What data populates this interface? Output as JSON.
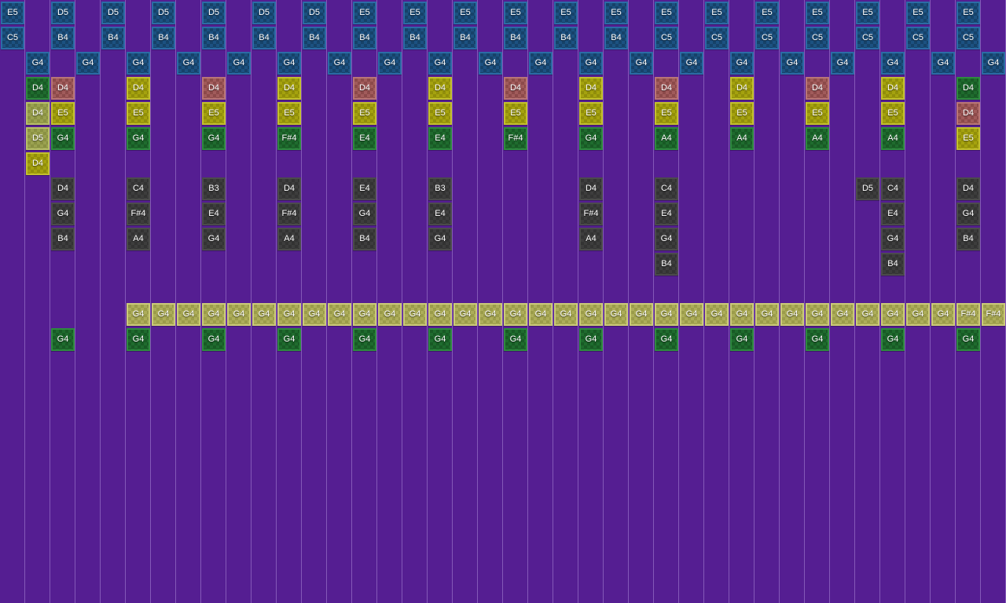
{
  "app": {
    "name": "music-sequencer-grid",
    "background_color": "#551e92",
    "gridline_color": "rgba(190,160,230,0.45)"
  },
  "note_colors": {
    "blue": {
      "fill1": "#1c5181",
      "fill2": "#164269",
      "border": "#2b6ba5"
    },
    "green": {
      "fill1": "#1f6b2e",
      "fill2": "#185a25",
      "border": "#2e8a3f"
    },
    "red": {
      "fill1": "#a15b5b",
      "fill2": "#8c4a4a",
      "border": "#b97676"
    },
    "yellow": {
      "fill1": "#a5a20e",
      "fill2": "#918e0a",
      "border": "#c3c02e"
    },
    "olive": {
      "fill1": "#9aa14f",
      "fill2": "#8a9143",
      "border": "#b8bf69"
    },
    "khaki": {
      "fill1": "#adad5a",
      "fill2": "#9b9c4a",
      "border": "#cbca79"
    },
    "gray": {
      "fill1": "#3d3d3d",
      "fill2": "#333333",
      "border": "#4b4b4b"
    }
  },
  "notes": {
    "format": [
      "column",
      "row",
      "pitch",
      "color"
    ],
    "items": [
      [
        0,
        0,
        "E5",
        "blue"
      ],
      [
        2,
        0,
        "D5",
        "blue"
      ],
      [
        4,
        0,
        "D5",
        "blue"
      ],
      [
        6,
        0,
        "D5",
        "blue"
      ],
      [
        8,
        0,
        "D5",
        "blue"
      ],
      [
        10,
        0,
        "D5",
        "blue"
      ],
      [
        12,
        0,
        "D5",
        "blue"
      ],
      [
        14,
        0,
        "E5",
        "blue"
      ],
      [
        16,
        0,
        "E5",
        "blue"
      ],
      [
        18,
        0,
        "E5",
        "blue"
      ],
      [
        20,
        0,
        "E5",
        "blue"
      ],
      [
        22,
        0,
        "E5",
        "blue"
      ],
      [
        24,
        0,
        "E5",
        "blue"
      ],
      [
        26,
        0,
        "E5",
        "blue"
      ],
      [
        28,
        0,
        "E5",
        "blue"
      ],
      [
        30,
        0,
        "E5",
        "blue"
      ],
      [
        32,
        0,
        "E5",
        "blue"
      ],
      [
        34,
        0,
        "E5",
        "blue"
      ],
      [
        36,
        0,
        "E5",
        "blue"
      ],
      [
        38,
        0,
        "E5",
        "blue"
      ],
      [
        0,
        1,
        "C5",
        "blue"
      ],
      [
        2,
        1,
        "B4",
        "blue"
      ],
      [
        4,
        1,
        "B4",
        "blue"
      ],
      [
        6,
        1,
        "B4",
        "blue"
      ],
      [
        8,
        1,
        "B4",
        "blue"
      ],
      [
        10,
        1,
        "B4",
        "blue"
      ],
      [
        12,
        1,
        "B4",
        "blue"
      ],
      [
        14,
        1,
        "B4",
        "blue"
      ],
      [
        16,
        1,
        "B4",
        "blue"
      ],
      [
        18,
        1,
        "B4",
        "blue"
      ],
      [
        20,
        1,
        "B4",
        "blue"
      ],
      [
        22,
        1,
        "B4",
        "blue"
      ],
      [
        24,
        1,
        "B4",
        "blue"
      ],
      [
        26,
        1,
        "C5",
        "blue"
      ],
      [
        28,
        1,
        "C5",
        "blue"
      ],
      [
        30,
        1,
        "C5",
        "blue"
      ],
      [
        32,
        1,
        "C5",
        "blue"
      ],
      [
        34,
        1,
        "C5",
        "blue"
      ],
      [
        36,
        1,
        "C5",
        "blue"
      ],
      [
        38,
        1,
        "C5",
        "blue"
      ],
      [
        1,
        2,
        "G4",
        "blue"
      ],
      [
        3,
        2,
        "G4",
        "blue"
      ],
      [
        5,
        2,
        "G4",
        "blue"
      ],
      [
        7,
        2,
        "G4",
        "blue"
      ],
      [
        9,
        2,
        "G4",
        "blue"
      ],
      [
        11,
        2,
        "G4",
        "blue"
      ],
      [
        13,
        2,
        "G4",
        "blue"
      ],
      [
        15,
        2,
        "G4",
        "blue"
      ],
      [
        17,
        2,
        "G4",
        "blue"
      ],
      [
        19,
        2,
        "G4",
        "blue"
      ],
      [
        21,
        2,
        "G4",
        "blue"
      ],
      [
        23,
        2,
        "G4",
        "blue"
      ],
      [
        25,
        2,
        "G4",
        "blue"
      ],
      [
        27,
        2,
        "G4",
        "blue"
      ],
      [
        29,
        2,
        "G4",
        "blue"
      ],
      [
        31,
        2,
        "G4",
        "blue"
      ],
      [
        33,
        2,
        "G4",
        "blue"
      ],
      [
        35,
        2,
        "G4",
        "blue"
      ],
      [
        37,
        2,
        "G4",
        "blue"
      ],
      [
        39,
        2,
        "G4",
        "blue"
      ],
      [
        1,
        3,
        "D4",
        "green"
      ],
      [
        2,
        3,
        "D4",
        "red"
      ],
      [
        5,
        3,
        "D4",
        "yellow"
      ],
      [
        8,
        3,
        "D4",
        "red"
      ],
      [
        11,
        3,
        "D4",
        "yellow"
      ],
      [
        14,
        3,
        "D4",
        "red"
      ],
      [
        17,
        3,
        "D4",
        "yellow"
      ],
      [
        20,
        3,
        "D4",
        "red"
      ],
      [
        23,
        3,
        "D4",
        "yellow"
      ],
      [
        26,
        3,
        "D4",
        "red"
      ],
      [
        29,
        3,
        "D4",
        "yellow"
      ],
      [
        32,
        3,
        "D4",
        "red"
      ],
      [
        35,
        3,
        "D4",
        "yellow"
      ],
      [
        38,
        3,
        "D4",
        "green"
      ],
      [
        1,
        4,
        "D4",
        "olive"
      ],
      [
        2,
        4,
        "E5",
        "yellow"
      ],
      [
        5,
        4,
        "E5",
        "yellow"
      ],
      [
        8,
        4,
        "E5",
        "yellow"
      ],
      [
        11,
        4,
        "E5",
        "yellow"
      ],
      [
        14,
        4,
        "E5",
        "yellow"
      ],
      [
        17,
        4,
        "E5",
        "yellow"
      ],
      [
        20,
        4,
        "E5",
        "yellow"
      ],
      [
        23,
        4,
        "E5",
        "yellow"
      ],
      [
        26,
        4,
        "E5",
        "yellow"
      ],
      [
        29,
        4,
        "E5",
        "yellow"
      ],
      [
        32,
        4,
        "E5",
        "yellow"
      ],
      [
        35,
        4,
        "E5",
        "yellow"
      ],
      [
        38,
        4,
        "D4",
        "red"
      ],
      [
        1,
        5,
        "D5",
        "olive"
      ],
      [
        2,
        5,
        "G4",
        "green"
      ],
      [
        5,
        5,
        "G4",
        "green"
      ],
      [
        8,
        5,
        "G4",
        "green"
      ],
      [
        11,
        5,
        "F#4",
        "green"
      ],
      [
        14,
        5,
        "E4",
        "green"
      ],
      [
        17,
        5,
        "E4",
        "green"
      ],
      [
        20,
        5,
        "F#4",
        "green"
      ],
      [
        23,
        5,
        "G4",
        "green"
      ],
      [
        26,
        5,
        "A4",
        "green"
      ],
      [
        29,
        5,
        "A4",
        "green"
      ],
      [
        32,
        5,
        "A4",
        "green"
      ],
      [
        35,
        5,
        "A4",
        "green"
      ],
      [
        38,
        5,
        "E5",
        "yellow"
      ],
      [
        1,
        6,
        "D4",
        "yellow"
      ],
      [
        2,
        7,
        "D4",
        "gray"
      ],
      [
        5,
        7,
        "C4",
        "gray"
      ],
      [
        8,
        7,
        "B3",
        "gray"
      ],
      [
        11,
        7,
        "D4",
        "gray"
      ],
      [
        14,
        7,
        "E4",
        "gray"
      ],
      [
        17,
        7,
        "B3",
        "gray"
      ],
      [
        23,
        7,
        "D4",
        "gray"
      ],
      [
        26,
        7,
        "C4",
        "gray"
      ],
      [
        34,
        7,
        "D5",
        "gray"
      ],
      [
        35,
        7,
        "C4",
        "gray"
      ],
      [
        38,
        7,
        "D4",
        "gray"
      ],
      [
        2,
        8,
        "G4",
        "gray"
      ],
      [
        5,
        8,
        "F#4",
        "gray"
      ],
      [
        8,
        8,
        "E4",
        "gray"
      ],
      [
        11,
        8,
        "F#4",
        "gray"
      ],
      [
        14,
        8,
        "G4",
        "gray"
      ],
      [
        17,
        8,
        "E4",
        "gray"
      ],
      [
        23,
        8,
        "F#4",
        "gray"
      ],
      [
        26,
        8,
        "E4",
        "gray"
      ],
      [
        35,
        8,
        "E4",
        "gray"
      ],
      [
        38,
        8,
        "G4",
        "gray"
      ],
      [
        2,
        9,
        "B4",
        "gray"
      ],
      [
        5,
        9,
        "A4",
        "gray"
      ],
      [
        8,
        9,
        "G4",
        "gray"
      ],
      [
        11,
        9,
        "A4",
        "gray"
      ],
      [
        14,
        9,
        "B4",
        "gray"
      ],
      [
        17,
        9,
        "G4",
        "gray"
      ],
      [
        23,
        9,
        "A4",
        "gray"
      ],
      [
        26,
        9,
        "G4",
        "gray"
      ],
      [
        35,
        9,
        "G4",
        "gray"
      ],
      [
        38,
        9,
        "B4",
        "gray"
      ],
      [
        26,
        10,
        "B4",
        "gray"
      ],
      [
        35,
        10,
        "B4",
        "gray"
      ],
      [
        5,
        12,
        "G4",
        "khaki"
      ],
      [
        6,
        12,
        "G4",
        "khaki"
      ],
      [
        7,
        12,
        "G4",
        "khaki"
      ],
      [
        8,
        12,
        "G4",
        "khaki"
      ],
      [
        9,
        12,
        "G4",
        "khaki"
      ],
      [
        10,
        12,
        "G4",
        "khaki"
      ],
      [
        11,
        12,
        "G4",
        "khaki"
      ],
      [
        12,
        12,
        "G4",
        "khaki"
      ],
      [
        13,
        12,
        "G4",
        "khaki"
      ],
      [
        14,
        12,
        "G4",
        "khaki"
      ],
      [
        15,
        12,
        "G4",
        "khaki"
      ],
      [
        16,
        12,
        "G4",
        "khaki"
      ],
      [
        17,
        12,
        "G4",
        "khaki"
      ],
      [
        18,
        12,
        "G4",
        "khaki"
      ],
      [
        19,
        12,
        "G4",
        "khaki"
      ],
      [
        20,
        12,
        "G4",
        "khaki"
      ],
      [
        21,
        12,
        "G4",
        "khaki"
      ],
      [
        22,
        12,
        "G4",
        "khaki"
      ],
      [
        23,
        12,
        "G4",
        "khaki"
      ],
      [
        24,
        12,
        "G4",
        "khaki"
      ],
      [
        25,
        12,
        "G4",
        "khaki"
      ],
      [
        26,
        12,
        "G4",
        "khaki"
      ],
      [
        27,
        12,
        "G4",
        "khaki"
      ],
      [
        28,
        12,
        "G4",
        "khaki"
      ],
      [
        29,
        12,
        "G4",
        "khaki"
      ],
      [
        30,
        12,
        "G4",
        "khaki"
      ],
      [
        31,
        12,
        "G4",
        "khaki"
      ],
      [
        32,
        12,
        "G4",
        "khaki"
      ],
      [
        33,
        12,
        "G4",
        "khaki"
      ],
      [
        34,
        12,
        "G4",
        "khaki"
      ],
      [
        35,
        12,
        "G4",
        "khaki"
      ],
      [
        36,
        12,
        "G4",
        "khaki"
      ],
      [
        37,
        12,
        "G4",
        "khaki"
      ],
      [
        38,
        12,
        "F#4",
        "khaki"
      ],
      [
        39,
        12,
        "F#4",
        "khaki"
      ],
      [
        2,
        13,
        "G4",
        "green"
      ],
      [
        5,
        13,
        "G4",
        "green"
      ],
      [
        8,
        13,
        "G4",
        "green"
      ],
      [
        11,
        13,
        "G4",
        "green"
      ],
      [
        14,
        13,
        "G4",
        "green"
      ],
      [
        17,
        13,
        "G4",
        "green"
      ],
      [
        20,
        13,
        "G4",
        "green"
      ],
      [
        23,
        13,
        "G4",
        "green"
      ],
      [
        26,
        13,
        "G4",
        "green"
      ],
      [
        29,
        13,
        "G4",
        "green"
      ],
      [
        32,
        13,
        "G4",
        "green"
      ],
      [
        35,
        13,
        "G4",
        "green"
      ],
      [
        38,
        13,
        "G4",
        "green"
      ]
    ]
  }
}
